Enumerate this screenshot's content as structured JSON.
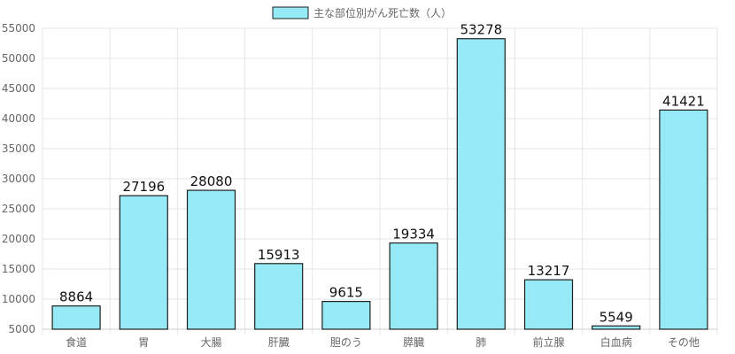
{
  "chart_data": {
    "type": "bar",
    "legend": {
      "label": "主な部位別がん死亡数（人）",
      "position": "top-center"
    },
    "categories": [
      "食道",
      "胃",
      "大腸",
      "肝臓",
      "胆のう",
      "膵臓",
      "肺",
      "前立腺",
      "白血病",
      "その他"
    ],
    "series": [
      {
        "name": "主な部位別がん死亡数（人）",
        "values": [
          8864,
          27196,
          28080,
          15913,
          9615,
          19334,
          53278,
          13217,
          5549,
          41421
        ]
      }
    ],
    "ylim": [
      5000,
      55000
    ],
    "yticks": [
      5000,
      10000,
      15000,
      20000,
      25000,
      30000,
      35000,
      40000,
      45000,
      50000,
      55000
    ],
    "grid": true,
    "colors": {
      "bar_fill": "#96eaf6",
      "bar_stroke": "#1f1f1f",
      "grid": "#e6e6e6"
    }
  }
}
